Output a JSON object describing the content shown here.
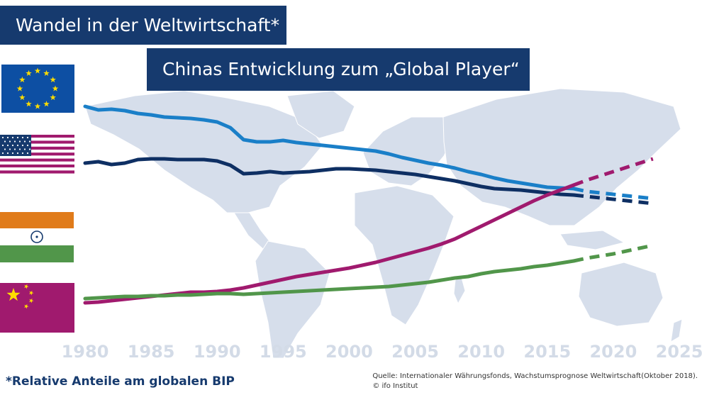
{
  "title": "Wandel in der Weltwirtschaft*",
  "subtitle": "Chinas Entwicklung zum „Global Player“",
  "footnote": "*Relative Anteile am globalen BIP",
  "source_line1": "Quelle: Internationaler Währungsfonds, Wachstumsprognose Weltwirtschaft(Oktober 2018).",
  "source_line2": "© ifo Institut",
  "colors": {
    "eu": "#1a7fc8",
    "usa": "#0e2f63",
    "india": "#51964a",
    "china": "#a01a6e",
    "map": "#d6deeb",
    "title_bg": "#163a6e",
    "axis_text": "#d3dbe7"
  },
  "legend": [
    {
      "name": "eu-flag-icon",
      "series": "eu"
    },
    {
      "name": "usa-flag-icon",
      "series": "usa"
    },
    {
      "name": "india-flag-icon",
      "series": "india"
    },
    {
      "name": "china-flag-icon",
      "series": "china"
    }
  ],
  "chart_data": {
    "type": "line",
    "xlabel": "",
    "ylabel": "",
    "x_ticks": [
      1980,
      1985,
      1990,
      1995,
      2000,
      2005,
      2010,
      2015,
      2020,
      2025
    ],
    "xlim": [
      1980,
      2025
    ],
    "ylim": [
      0,
      32
    ],
    "grid": false,
    "y_axis_shown": false,
    "actual_until": 2017,
    "forecast_until": 2023,
    "series": [
      {
        "key": "eu",
        "x": [
          1980,
          1981,
          1982,
          1983,
          1984,
          1985,
          1986,
          1987,
          1988,
          1989,
          1990,
          1991,
          1992,
          1993,
          1994,
          1995,
          1996,
          1997,
          1998,
          1999,
          2000,
          2001,
          2002,
          2003,
          2004,
          2005,
          2006,
          2007,
          2008,
          2009,
          2010,
          2011,
          2012,
          2013,
          2014,
          2015,
          2016,
          2017,
          2018,
          2019,
          2020,
          2021,
          2022,
          2023
        ],
        "y": [
          30.0,
          29.5,
          29.6,
          29.4,
          29.0,
          28.8,
          28.5,
          28.4,
          28.3,
          28.1,
          27.8,
          27.0,
          25.3,
          25.0,
          25.0,
          25.2,
          24.9,
          24.7,
          24.5,
          24.3,
          24.1,
          23.9,
          23.7,
          23.3,
          22.8,
          22.4,
          22.0,
          21.7,
          21.3,
          20.8,
          20.4,
          19.9,
          19.5,
          19.2,
          18.9,
          18.6,
          18.5,
          18.4,
          18.0,
          17.8,
          17.6,
          17.4,
          17.2,
          17.0
        ]
      },
      {
        "key": "usa",
        "x": [
          1980,
          1981,
          1982,
          1983,
          1984,
          1985,
          1986,
          1987,
          1988,
          1989,
          1990,
          1991,
          1992,
          1993,
          1994,
          1995,
          1996,
          1997,
          1998,
          1999,
          2000,
          2001,
          2002,
          2003,
          2004,
          2005,
          2006,
          2007,
          2008,
          2009,
          2010,
          2011,
          2012,
          2013,
          2014,
          2015,
          2016,
          2017,
          2018,
          2019,
          2020,
          2021,
          2022,
          2023
        ],
        "y": [
          22.0,
          22.2,
          21.8,
          22.0,
          22.5,
          22.6,
          22.6,
          22.5,
          22.5,
          22.5,
          22.3,
          21.7,
          20.5,
          20.6,
          20.8,
          20.6,
          20.7,
          20.8,
          21.0,
          21.2,
          21.2,
          21.1,
          21.0,
          20.8,
          20.6,
          20.4,
          20.1,
          19.8,
          19.5,
          19.1,
          18.7,
          18.4,
          18.3,
          18.2,
          18.0,
          17.8,
          17.6,
          17.5,
          17.3,
          17.1,
          16.9,
          16.7,
          16.5,
          16.3
        ]
      },
      {
        "key": "china",
        "x": [
          1980,
          1981,
          1982,
          1983,
          1984,
          1985,
          1986,
          1987,
          1988,
          1989,
          1990,
          1991,
          1992,
          1993,
          1994,
          1995,
          1996,
          1997,
          1998,
          1999,
          2000,
          2001,
          2002,
          2003,
          2004,
          2005,
          2006,
          2007,
          2008,
          2009,
          2010,
          2011,
          2012,
          2013,
          2014,
          2015,
          2016,
          2017,
          2018,
          2019,
          2020,
          2021,
          2022,
          2023
        ],
        "y": [
          2.3,
          2.4,
          2.6,
          2.8,
          3.0,
          3.2,
          3.4,
          3.6,
          3.8,
          3.8,
          3.9,
          4.1,
          4.4,
          4.8,
          5.2,
          5.6,
          6.0,
          6.3,
          6.6,
          6.9,
          7.2,
          7.6,
          8.0,
          8.5,
          9.0,
          9.5,
          10.0,
          10.6,
          11.3,
          12.2,
          13.1,
          14.0,
          14.9,
          15.8,
          16.7,
          17.5,
          18.2,
          18.9,
          19.6,
          20.2,
          20.8,
          21.4,
          22.0,
          22.6
        ]
      },
      {
        "key": "india",
        "x": [
          1980,
          1981,
          1982,
          1983,
          1984,
          1985,
          1986,
          1987,
          1988,
          1989,
          1990,
          1991,
          1992,
          1993,
          1994,
          1995,
          1996,
          1997,
          1998,
          1999,
          2000,
          2001,
          2002,
          2003,
          2004,
          2005,
          2006,
          2007,
          2008,
          2009,
          2010,
          2011,
          2012,
          2013,
          2014,
          2015,
          2016,
          2017,
          2018,
          2019,
          2020,
          2021,
          2022,
          2023
        ],
        "y": [
          2.9,
          3.0,
          3.1,
          3.2,
          3.2,
          3.3,
          3.3,
          3.4,
          3.4,
          3.5,
          3.6,
          3.6,
          3.5,
          3.6,
          3.7,
          3.8,
          3.9,
          4.0,
          4.1,
          4.2,
          4.3,
          4.4,
          4.5,
          4.6,
          4.8,
          5.0,
          5.2,
          5.5,
          5.8,
          6.0,
          6.4,
          6.7,
          6.9,
          7.1,
          7.4,
          7.6,
          7.9,
          8.2,
          8.6,
          8.9,
          9.2,
          9.6,
          10.0,
          10.4
        ]
      }
    ]
  }
}
